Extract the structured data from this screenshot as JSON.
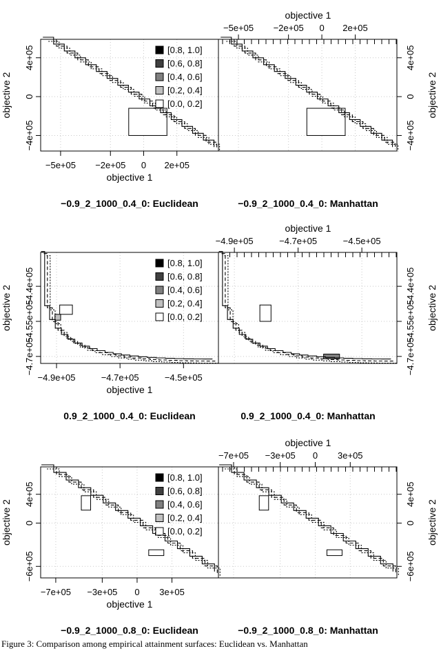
{
  "legend_entries": [
    "[0.8, 1.0]",
    "[0.6, 0.8]",
    "[0.4, 0.6]",
    "[0.2, 0.4]",
    "[0.0, 0.2]"
  ],
  "legend_colors": [
    "#000000",
    "#404040",
    "#808080",
    "#c0c0c0",
    "#ffffff"
  ],
  "caption": "Figure 3: Comparison among empirical attainment surfaces: Euclidean vs. Manhattan",
  "chart_data": [
    {
      "type": "line",
      "subtype": "empirical attainment surface",
      "xlabel": "objective 1",
      "ylabel": "objective 2",
      "left_title": "−0.9_2_1000_0.4_0: Euclidean",
      "right_title": "−0.9_2_1000_0.4_0: Manhattan",
      "xlim": [
        -620000,
        450000
      ],
      "ylim": [
        -560000,
        590000
      ],
      "x_ticks": [
        -500000,
        -200000,
        0,
        200000
      ],
      "x_tick_labels": [
        "−5e+05",
        "−2e+05",
        "0",
        "2e+05"
      ],
      "y_ticks": [
        400000,
        0,
        -400000
      ],
      "y_tick_labels": [
        "4e+05",
        "0",
        "−4e+05"
      ],
      "step": {
        "x0": -590000,
        "y0": 590000,
        "x1": 440000,
        "y1": -540000,
        "steps": 16
      },
      "euclidean_boxes": [
        {
          "x0": -90000,
          "x1": 140000,
          "y0": -120000,
          "y1": -400000,
          "level": "[0.0, 0.2]"
        }
      ],
      "manhattan_boxes": [
        {
          "x0": -90000,
          "x1": 140000,
          "y0": -120000,
          "y1": -400000,
          "level": "[0.0, 0.2]"
        }
      ]
    },
    {
      "type": "line",
      "subtype": "empirical attainment surface",
      "xlabel": "objective 1",
      "ylabel": "objective 2",
      "left_title": "0.9_2_1000_0.4_0: Euclidean",
      "right_title": "0.9_2_1000_0.4_0: Manhattan",
      "xlim": [
        -495000,
        -439000
      ],
      "ylim": [
        -473000,
        -425500
      ],
      "x_ticks": [
        -490000,
        -470000,
        -450000
      ],
      "x_tick_labels": [
        "−4.9e+05",
        "−4.7e+05",
        "−4.5e+05"
      ],
      "y_ticks": [
        -440000,
        -455000,
        -470000
      ],
      "y_tick_labels": [
        "−4.4e+05",
        "−4.55e+05",
        "−4.7e+05"
      ],
      "curve": {
        "x0": -494000,
        "y0": -426000,
        "x1": -440000,
        "y1": -472000
      },
      "euclidean_boxes": [
        {
          "x0": -489000,
          "x1": -485000,
          "y0": -448000,
          "y1": -452000,
          "level": "[0.0, 0.2]"
        },
        {
          "x0": -490500,
          "x1": -488700,
          "y0": -452000,
          "y1": -454500,
          "level": "[0.2, 0.4]"
        }
      ],
      "manhattan_boxes": [
        {
          "x0": -482000,
          "x1": -478500,
          "y0": -448000,
          "y1": -455000,
          "level": "[0.0, 0.2]"
        },
        {
          "x0": -462000,
          "x1": -457000,
          "y0": -469000,
          "y1": -471000,
          "level": "[0.4, 0.6]"
        }
      ]
    },
    {
      "type": "line",
      "subtype": "empirical attainment surface",
      "xlabel": "objective 1",
      "ylabel": "objective 2",
      "left_title": "−0.9_2_1000_0.8_0: Euclidean",
      "right_title": "−0.9_2_1000_0.8_0: Manhattan",
      "xlim": [
        -830000,
        700000
      ],
      "ylim": [
        -760000,
        780000
      ],
      "x_ticks": [
        -700000,
        -300000,
        0,
        300000
      ],
      "x_tick_labels": [
        "−7e+05",
        "−3e+05",
        "0",
        "3e+05"
      ],
      "y_ticks": [
        400000,
        0,
        -600000
      ],
      "y_tick_labels": [
        "4e+05",
        "0",
        "−6e+05"
      ],
      "step": {
        "x0": -800000,
        "y0": 780000,
        "x1": 690000,
        "y1": -700000,
        "steps": 14
      },
      "euclidean_boxes": [
        {
          "x0": -480000,
          "x1": -400000,
          "y0": 380000,
          "y1": 180000,
          "level": "[0.0, 0.2]"
        },
        {
          "x0": 100000,
          "x1": 230000,
          "y0": -370000,
          "y1": -450000,
          "level": "[0.0, 0.2]"
        }
      ],
      "manhattan_boxes": [
        {
          "x0": -480000,
          "x1": -400000,
          "y0": 380000,
          "y1": 180000,
          "level": "[0.0, 0.2]"
        },
        {
          "x0": 100000,
          "x1": 230000,
          "y0": -370000,
          "y1": -450000,
          "level": "[0.0, 0.2]"
        }
      ]
    }
  ]
}
